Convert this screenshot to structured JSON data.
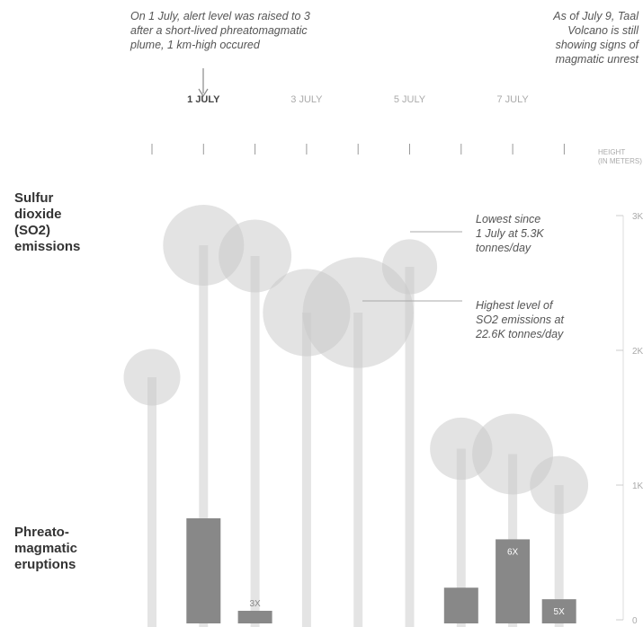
{
  "chart_data": {
    "type": "bubble-lollipop-with-bars",
    "y_axis": {
      "title_line1": "HEIGHT",
      "title_line2": "(IN METERS)",
      "range": [
        0,
        3000
      ],
      "ticks": [
        {
          "value": 0,
          "label": "0"
        },
        {
          "value": 1000,
          "label": "1K"
        },
        {
          "value": 2000,
          "label": "2K"
        },
        {
          "value": 3000,
          "label": "3K"
        }
      ]
    },
    "x_axis": {
      "labels": [
        {
          "label": "1 JULY",
          "day": 1,
          "bold": true
        },
        {
          "label": "3 JULY",
          "day": 3,
          "bold": false
        },
        {
          "label": "5 JULY",
          "day": 5,
          "bold": false
        },
        {
          "label": "7 JULY",
          "day": 7,
          "bold": false
        }
      ],
      "ticks": [
        0,
        1,
        2,
        3,
        4,
        5,
        6,
        7,
        8
      ]
    },
    "categories": {
      "so2_label": "Sulfur\ndioxide\n(SO2)\nemissions",
      "eruption_label": "Phreato-\nmagmatic\neruptions"
    },
    "series": [
      {
        "day": 0,
        "plume_height_m": 1800,
        "bubble_size": 0.7
      },
      {
        "day": 1,
        "plume_height_m": 2780,
        "bubble_size": 1.0,
        "eruptions": 1,
        "eruption_label": ""
      },
      {
        "day": 2,
        "plume_height_m": 2700,
        "bubble_size": 0.9,
        "eruptions": 0.12,
        "eruption_label": "3X"
      },
      {
        "day": 3,
        "plume_height_m": 2280,
        "bubble_size": 1.08
      },
      {
        "day": 4,
        "plume_height_m": 2280,
        "bubble_size": 1.37
      },
      {
        "day": 5,
        "plume_height_m": 2620,
        "bubble_size": 0.68
      },
      {
        "day": 6,
        "plume_height_m": 1270,
        "bubble_size": 0.77,
        "eruptions": 0.34,
        "eruption_label": ""
      },
      {
        "day": 7,
        "plume_height_m": 1230,
        "bubble_size": 1.0,
        "eruptions": 0.8,
        "eruption_label": "6X"
      },
      {
        "day": 7.9,
        "plume_height_m": 1000,
        "bubble_size": 0.72,
        "eruptions": 0.23,
        "eruption_label": "5X"
      }
    ],
    "annotations": {
      "top_left": "On 1 July, alert level was raised to 3\nafter a short-lived phreatomagmatic\nplume, 1 km-high occured",
      "top_right": "As of July 9, Taal\nVolcano is still\nshowing signs of\nmagmatic unrest",
      "lowest": "Lowest since\n1 July at 5.3K\ntonnes/day",
      "highest": "Highest level of\nSO2 emissions at\n22.6K tonnes/day"
    }
  }
}
